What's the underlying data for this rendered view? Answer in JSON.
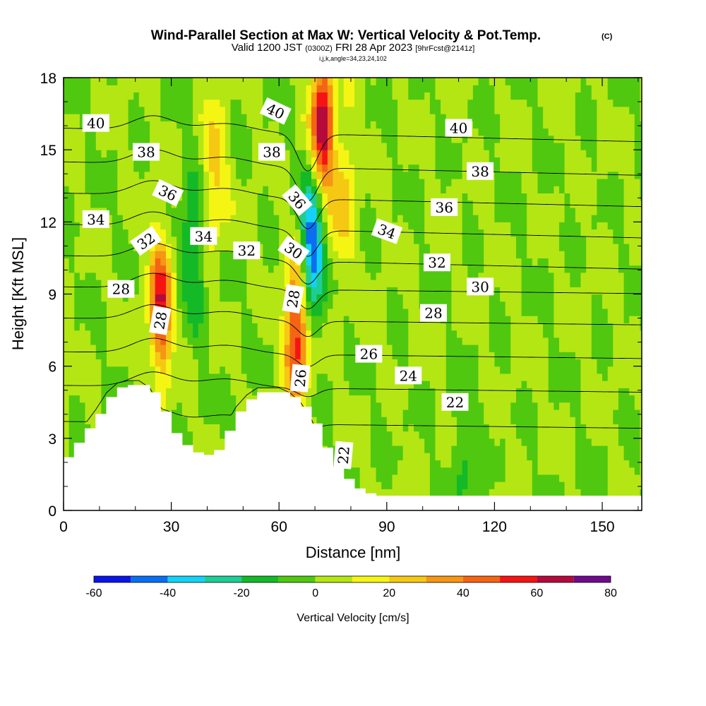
{
  "title": {
    "main": "Wind-Parallel Section at Max W: Vertical Velocity & Pot.Temp.",
    "copyright": "(C)",
    "valid_prefix": "Valid 1200 JST",
    "valid_utc": "(0300Z)",
    "valid_date": "FRI 28 Apr 2023",
    "forecast": "[9hrFcst@2141z]",
    "indices": "i,j,k,angle=34,23,24,102"
  },
  "chart_data": {
    "type": "heatmap",
    "xlabel": "Distance [nm]",
    "ylabel": "Height [Kft MSL]",
    "xlim": [
      0,
      161
    ],
    "ylim": [
      0,
      18
    ],
    "x_ticks": [
      0,
      30,
      60,
      90,
      120,
      150
    ],
    "y_ticks": [
      0,
      3,
      6,
      9,
      12,
      15,
      18
    ],
    "colorbar": {
      "label": "Vertical Velocity [cm/s]",
      "tick_labels": [
        -60,
        -40,
        -20,
        0,
        20,
        40,
        60,
        80
      ],
      "bounds": [
        -60,
        -50,
        -40,
        -30,
        -20,
        -10,
        0,
        10,
        20,
        30,
        40,
        50,
        60,
        70,
        80
      ],
      "colors": [
        "#0a14e6",
        "#0a6ef0",
        "#14d2f5",
        "#1ecd96",
        "#14b928",
        "#50c80f",
        "#b4e614",
        "#f5f514",
        "#f5c814",
        "#f59614",
        "#f56414",
        "#f51414",
        "#b40a3c",
        "#6e0a8c"
      ]
    },
    "vertical_velocity_features": [
      {
        "x": 27,
        "y": 8.5,
        "w_cm_s": 55
      },
      {
        "x": 36,
        "y": 11,
        "w_cm_s": -25
      },
      {
        "x": 42,
        "y": 14,
        "w_cm_s": 25
      },
      {
        "x": 65,
        "y": 7.5,
        "w_cm_s": 60
      },
      {
        "x": 69,
        "y": 11,
        "w_cm_s": -55
      },
      {
        "x": 72,
        "y": 16,
        "w_cm_s": 65
      },
      {
        "x": 78,
        "y": 13,
        "w_cm_s": 25
      },
      {
        "x": 112,
        "y": 2.3,
        "w_cm_s": -15
      }
    ],
    "terrain": {
      "x": [
        0,
        3,
        6,
        9,
        12,
        15,
        18,
        21,
        24,
        27,
        30,
        33,
        36,
        39,
        42,
        45,
        48,
        51,
        54,
        57,
        60,
        63,
        66,
        69,
        72,
        75,
        78,
        81,
        84,
        87,
        161
      ],
      "height": [
        2.2,
        2.8,
        3.4,
        4.0,
        4.7,
        5.1,
        5.2,
        5.2,
        4.9,
        4.1,
        3.2,
        2.7,
        2.4,
        2.3,
        2.5,
        3.3,
        4.1,
        4.6,
        4.9,
        4.9,
        4.9,
        4.7,
        4.3,
        3.6,
        2.6,
        1.8,
        1.3,
        0.9,
        0.7,
        0.6,
        0.5
      ]
    },
    "isentropes": {
      "levels": [
        22,
        24,
        26,
        28,
        30,
        32,
        34,
        36,
        38,
        40
      ],
      "base_height": {
        "22": 3.7,
        "24": 5.2,
        "26": 6.6,
        "28": 8.0,
        "30": 9.3,
        "32": 10.6,
        "34": 11.9,
        "36": 13.2,
        "38": 14.5,
        "40": 15.9
      },
      "labels": [
        {
          "value": "40",
          "x": 9,
          "y": 16.1,
          "angle": 0
        },
        {
          "value": "38",
          "x": 23,
          "y": 14.9,
          "angle": 0
        },
        {
          "value": "36",
          "x": 29,
          "y": 13.2,
          "angle": 25
        },
        {
          "value": "34",
          "x": 9,
          "y": 12.1,
          "angle": 0
        },
        {
          "value": "32",
          "x": 23,
          "y": 11.2,
          "angle": -35
        },
        {
          "value": "34",
          "x": 39,
          "y": 11.4,
          "angle": 0
        },
        {
          "value": "28",
          "x": 16,
          "y": 9.2,
          "angle": 0
        },
        {
          "value": "28",
          "x": 27,
          "y": 7.9,
          "angle": -80
        },
        {
          "value": "40",
          "x": 59,
          "y": 16.6,
          "angle": 25
        },
        {
          "value": "38",
          "x": 58,
          "y": 14.9,
          "angle": 0
        },
        {
          "value": "36",
          "x": 65,
          "y": 12.9,
          "angle": 50
        },
        {
          "value": "32",
          "x": 51,
          "y": 10.8,
          "angle": 0
        },
        {
          "value": "30",
          "x": 64,
          "y": 10.8,
          "angle": 35
        },
        {
          "value": "28",
          "x": 64,
          "y": 8.8,
          "angle": -80
        },
        {
          "value": "26",
          "x": 66,
          "y": 5.5,
          "angle": -85
        },
        {
          "value": "22",
          "x": 78,
          "y": 2.3,
          "angle": -85
        },
        {
          "value": "40",
          "x": 110,
          "y": 15.9,
          "angle": 0
        },
        {
          "value": "38",
          "x": 116,
          "y": 14.1,
          "angle": 0
        },
        {
          "value": "36",
          "x": 106,
          "y": 12.6,
          "angle": 0
        },
        {
          "value": "34",
          "x": 90,
          "y": 11.6,
          "angle": 20
        },
        {
          "value": "32",
          "x": 104,
          "y": 10.3,
          "angle": 0
        },
        {
          "value": "30",
          "x": 116,
          "y": 9.3,
          "angle": 0
        },
        {
          "value": "28",
          "x": 103,
          "y": 8.2,
          "angle": 0
        },
        {
          "value": "26",
          "x": 85,
          "y": 6.5,
          "angle": 0
        },
        {
          "value": "24",
          "x": 96,
          "y": 5.6,
          "angle": 0
        },
        {
          "value": "22",
          "x": 109,
          "y": 4.5,
          "angle": 0
        }
      ]
    }
  }
}
